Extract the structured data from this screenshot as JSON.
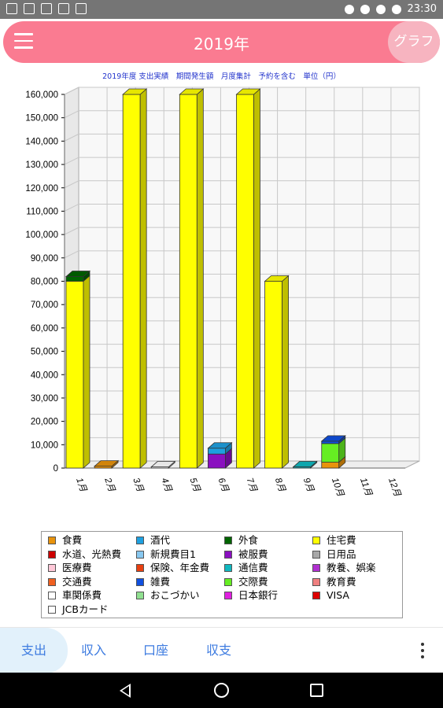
{
  "status_bar": {
    "time": "23:30"
  },
  "app_bar": {
    "title": "2019年",
    "graph_button": "グラフ"
  },
  "chart_data": {
    "type": "bar",
    "title": "2019年度 支出実績　期間発生額　月度集計　予約を含む　単位（円）",
    "categories": [
      "1月",
      "2月",
      "3月",
      "4月",
      "5月",
      "6月",
      "7月",
      "8月",
      "9月",
      "10月",
      "11月",
      "12月"
    ],
    "ylim": [
      0,
      160000
    ],
    "yticks": [
      0,
      10000,
      20000,
      30000,
      40000,
      50000,
      60000,
      70000,
      80000,
      90000,
      100000,
      110000,
      120000,
      130000,
      140000,
      150000,
      160000
    ],
    "ytick_labels": [
      "0",
      "10,000",
      "20,000",
      "30,000",
      "40,000",
      "50,000",
      "60,000",
      "70,000",
      "80,000",
      "90,000",
      "100,000",
      "110,000",
      "120,000",
      "130,000",
      "140,000",
      "150,000",
      "160,000"
    ],
    "grid": true,
    "stacked": true,
    "series": [
      {
        "name": "住宅費",
        "color": "#ffff00",
        "values": [
          80000,
          0,
          160000,
          0,
          160000,
          0,
          160000,
          80000,
          0,
          0,
          0,
          0
        ]
      },
      {
        "name": "外食",
        "color": "#006400",
        "values": [
          2000,
          0,
          0,
          0,
          0,
          0,
          0,
          0,
          0,
          0,
          0,
          0
        ]
      },
      {
        "name": "食費",
        "color": "#e8930c",
        "values": [
          0,
          800,
          0,
          0,
          0,
          0,
          0,
          0,
          0,
          2500,
          0,
          0
        ]
      },
      {
        "name": "被服費",
        "color": "#8a10c0",
        "values": [
          0,
          0,
          0,
          0,
          0,
          6000,
          0,
          0,
          0,
          0,
          0,
          0
        ]
      },
      {
        "name": "酒代",
        "color": "#1ea0e0",
        "values": [
          0,
          0,
          0,
          0,
          0,
          2500,
          0,
          0,
          0,
          0,
          0,
          0
        ]
      },
      {
        "name": "車関係費",
        "color": "#ffffff",
        "values": [
          0,
          0,
          0,
          500,
          0,
          0,
          0,
          0,
          0,
          0,
          0,
          0
        ]
      },
      {
        "name": "通信費",
        "color": "#10b8c0",
        "values": [
          0,
          0,
          0,
          0,
          0,
          0,
          0,
          0,
          500,
          0,
          0,
          0
        ]
      },
      {
        "name": "交際費",
        "color": "#66ee22",
        "values": [
          0,
          0,
          0,
          0,
          0,
          0,
          0,
          0,
          0,
          8000,
          0,
          0
        ]
      },
      {
        "name": "雑費",
        "color": "#1050e0",
        "values": [
          0,
          0,
          0,
          0,
          0,
          0,
          0,
          0,
          0,
          1000,
          0,
          0
        ]
      }
    ],
    "legend": [
      {
        "name": "食費",
        "color": "#e8930c"
      },
      {
        "name": "酒代",
        "color": "#1ea0e0"
      },
      {
        "name": "外食",
        "color": "#006400"
      },
      {
        "name": "住宅費",
        "color": "#ffff00"
      },
      {
        "name": "水道、光熱費",
        "color": "#cc0000"
      },
      {
        "name": "新規費目1",
        "color": "#88c8f0"
      },
      {
        "name": "被服費",
        "color": "#8a10c0"
      },
      {
        "name": "日用品",
        "color": "#a8a8a8"
      },
      {
        "name": "医療費",
        "color": "#ffc8d8"
      },
      {
        "name": "保険、年金費",
        "color": "#e84010"
      },
      {
        "name": "通信費",
        "color": "#10b8c0"
      },
      {
        "name": "教養、娯楽",
        "color": "#b030d0"
      },
      {
        "name": "交通費",
        "color": "#f06020"
      },
      {
        "name": "雑費",
        "color": "#1050e0"
      },
      {
        "name": "交際費",
        "color": "#66ee22"
      },
      {
        "name": "教育費",
        "color": "#f08080"
      },
      {
        "name": "車関係費",
        "color": "#ffffff"
      },
      {
        "name": "おこづかい",
        "color": "#90e090"
      },
      {
        "name": "日本銀行",
        "color": "#e020e0"
      },
      {
        "name": "VISA",
        "color": "#dd0000"
      },
      {
        "name": "JCBカード",
        "color": "#ffffff"
      }
    ]
  },
  "tabs": [
    {
      "label": "支出",
      "active": true
    },
    {
      "label": "収入",
      "active": false
    },
    {
      "label": "口座",
      "active": false
    },
    {
      "label": "収支",
      "active": false
    }
  ]
}
